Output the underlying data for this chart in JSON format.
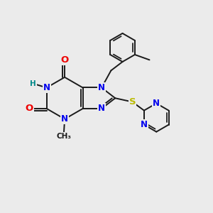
{
  "bg_color": "#ebebeb",
  "bond_color": "#1a1a1a",
  "bond_lw": 1.4,
  "atom_colors": {
    "N": "#0000ee",
    "O": "#ee0000",
    "S": "#bbbb00",
    "H": "#008888",
    "C": "#1a1a1a"
  },
  "font_size": 8.5,
  "figsize": [
    3.0,
    3.0
  ],
  "dpi": 100
}
